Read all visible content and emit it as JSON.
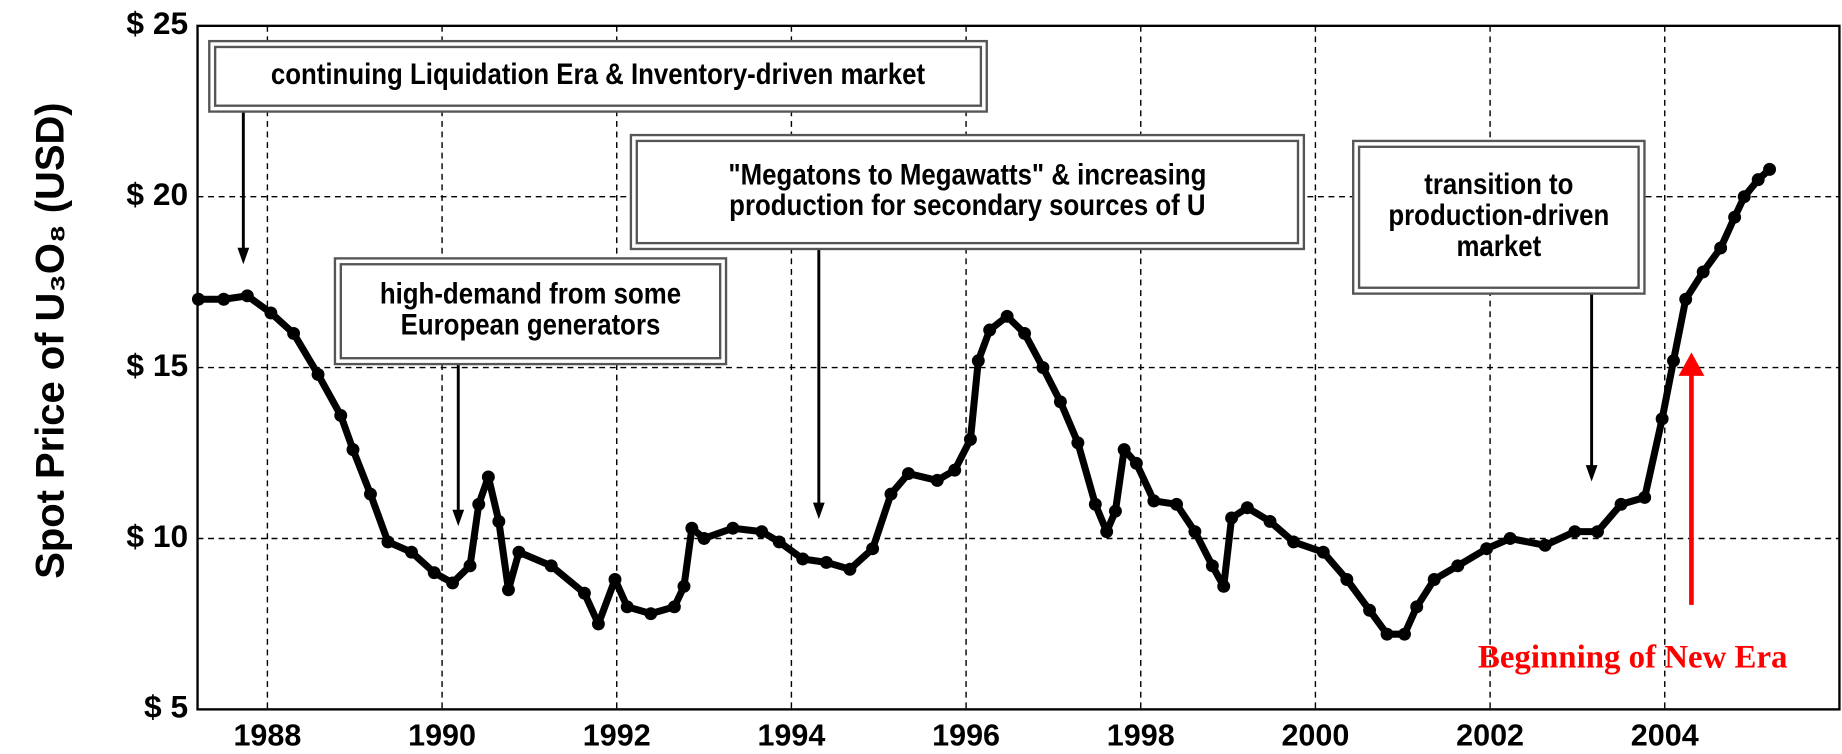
{
  "chart_data": {
    "type": "line",
    "ylabel": "Spot Price of U₃O₈ (USD)",
    "xlim": [
      1987.2,
      2006
    ],
    "ylim": [
      5,
      25
    ],
    "xticks": [
      1988,
      1990,
      1992,
      1994,
      1996,
      1998,
      2000,
      2002,
      2004
    ],
    "yticks": [
      {
        "value": 5,
        "label": "$ 5"
      },
      {
        "value": 10,
        "label": "$ 10"
      },
      {
        "value": 15,
        "label": "$ 15"
      },
      {
        "value": 20,
        "label": "$ 20"
      },
      {
        "value": 25,
        "label": "$ 25"
      }
    ],
    "grid": true,
    "color": "#000000",
    "x": [
      1987.21,
      1987.5,
      1987.77,
      1988.04,
      1988.3,
      1988.58,
      1988.84,
      1988.98,
      1989.18,
      1989.38,
      1989.65,
      1989.91,
      1990.12,
      1990.32,
      1990.42,
      1990.53,
      1990.65,
      1990.76,
      1990.88,
      1991.25,
      1991.63,
      1991.79,
      1991.98,
      1992.12,
      1992.39,
      1992.66,
      1992.77,
      1992.86,
      1993.0,
      1993.33,
      1993.66,
      1993.86,
      1994.13,
      1994.4,
      1994.67,
      1994.93,
      1995.14,
      1995.34,
      1995.67,
      1995.87,
      1996.05,
      1996.14,
      1996.27,
      1996.47,
      1996.67,
      1996.88,
      1997.08,
      1997.28,
      1997.48,
      1997.61,
      1997.71,
      1997.81,
      1997.95,
      1998.15,
      1998.41,
      1998.62,
      1998.82,
      1998.95,
      1999.04,
      1999.22,
      1999.48,
      1999.75,
      2000.09,
      2000.36,
      2000.62,
      2000.82,
      2001.02,
      2001.16,
      2001.36,
      2001.63,
      2001.96,
      2002.23,
      2002.63,
      2002.97,
      2003.23,
      2003.5,
      2003.77,
      2003.97,
      2004.1,
      2004.24,
      2004.44,
      2004.64,
      2004.8,
      2004.91,
      2005.07,
      2005.2
    ],
    "values": [
      17.0,
      17.0,
      17.1,
      16.6,
      16.0,
      14.8,
      13.6,
      12.6,
      11.3,
      9.9,
      9.6,
      9.0,
      8.7,
      9.2,
      11.0,
      11.8,
      10.5,
      8.5,
      9.6,
      9.2,
      8.4,
      7.5,
      8.8,
      8.0,
      7.8,
      8.0,
      8.6,
      10.3,
      10.0,
      10.3,
      10.2,
      9.9,
      9.4,
      9.3,
      9.1,
      9.7,
      11.3,
      11.9,
      11.7,
      12.0,
      12.9,
      15.2,
      16.1,
      16.5,
      16.0,
      15.0,
      14.0,
      12.8,
      11.0,
      10.2,
      10.8,
      12.6,
      12.2,
      11.1,
      11.0,
      10.2,
      9.2,
      8.6,
      10.6,
      10.9,
      10.5,
      9.9,
      9.6,
      8.8,
      7.9,
      7.2,
      7.2,
      8.0,
      8.8,
      9.2,
      9.7,
      10.0,
      9.8,
      10.2,
      10.2,
      11.0,
      11.2,
      13.5,
      15.2,
      17.0,
      17.8,
      18.5,
      19.4,
      20.0,
      20.5,
      20.8
    ],
    "annotations": [
      {
        "lines": [
          "continuing Liquidation Era & Inventory-driven market"
        ]
      },
      {
        "lines": [
          "high-demand from some",
          "European generators"
        ]
      },
      {
        "lines": [
          "\"Megatons to Megawatts\" & increasing",
          "production for secondary sources of U"
        ]
      },
      {
        "lines": [
          "transition to",
          "production-driven",
          "market"
        ]
      },
      {
        "lines": [
          "Beginning of New Era"
        ],
        "color": "#ff0000"
      }
    ]
  }
}
